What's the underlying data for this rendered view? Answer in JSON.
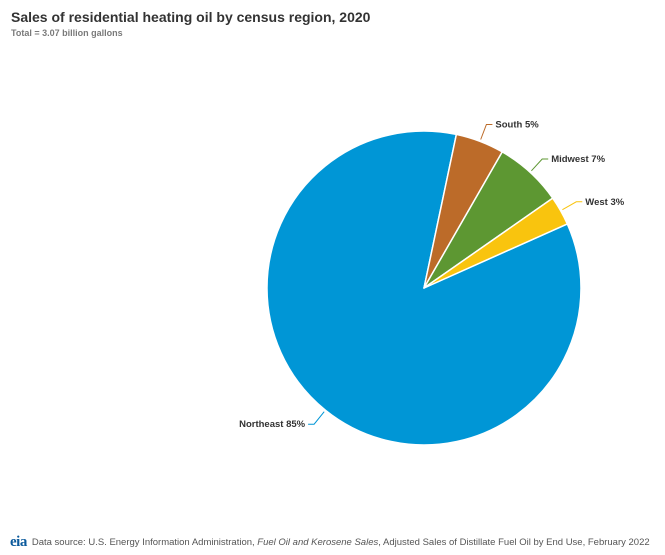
{
  "chart_data": {
    "type": "pie",
    "title": "Sales of residential heating oil by census region, 2020",
    "subtitle": "Total = 3.07 billion gallons",
    "slices": [
      {
        "label": "Northeast 85%",
        "value": 85,
        "color": "#0096d6"
      },
      {
        "label": "South 5%",
        "value": 5,
        "color": "#bc6b29"
      },
      {
        "label": "Midwest 7%",
        "value": 7,
        "color": "#5d9732"
      },
      {
        "label": "West 3%",
        "value": 3,
        "color": "#f9c40e"
      }
    ]
  },
  "source": {
    "logo": "eia",
    "prefix": "Data source: U.S. Energy Information Administration, ",
    "italic": "Fuel Oil and Kerosene Sales",
    "suffix": ", Adjusted Sales of Distillate Fuel Oil by End Use, February 2022"
  }
}
